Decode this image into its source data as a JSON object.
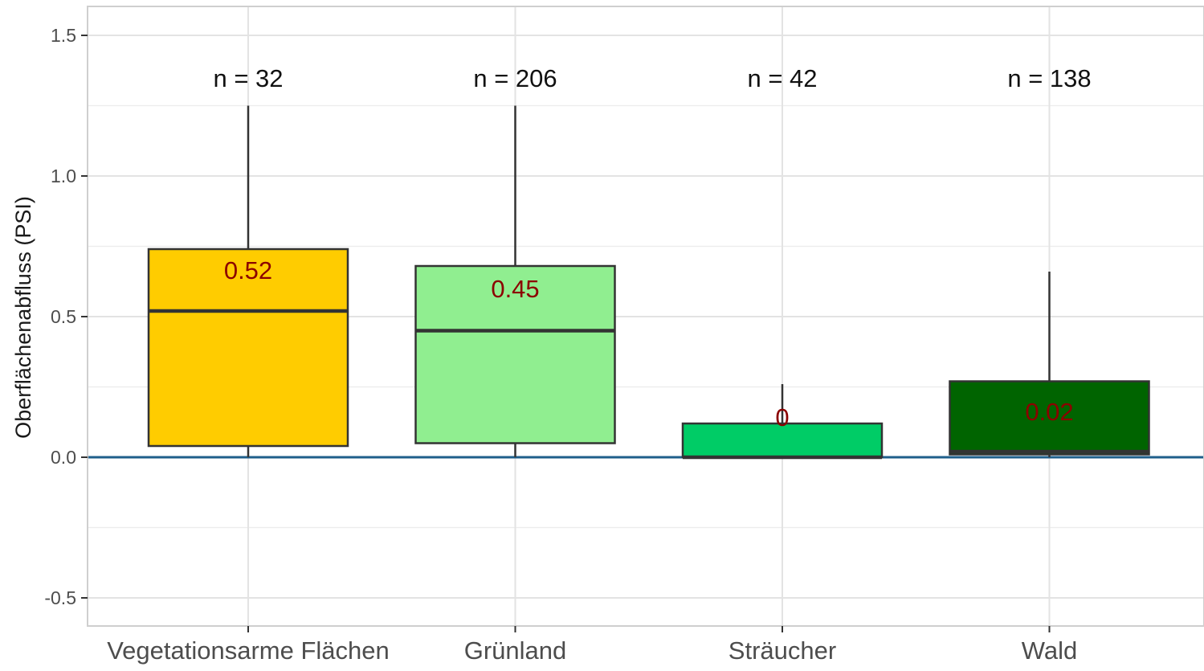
{
  "chart_data": {
    "type": "box",
    "ylabel": "Oberflächenabfluss (PSI)",
    "xlabel": "",
    "ylim": [
      -0.6,
      1.6
    ],
    "yticks": [
      -0.5,
      0.0,
      0.5,
      1.0,
      1.5
    ],
    "ytick_labels": [
      "-0.5",
      "0.0",
      "0.5",
      "1.0",
      "1.5"
    ],
    "grid": true,
    "reference_line": {
      "y": 0,
      "color": "#1f5f8b"
    },
    "categories": [
      "Vegetationsarme Flächen",
      "Grünland",
      "Sträucher",
      "Wald"
    ],
    "boxes": [
      {
        "category": "Vegetationsarme Flächen",
        "n_label": "n = 32",
        "whisker_low": 0.0,
        "q1": 0.04,
        "median": 0.52,
        "q3": 0.74,
        "whisker_high": 1.25,
        "median_label": "0.52",
        "color": "#FFCC00"
      },
      {
        "category": "Grünland",
        "n_label": "n = 206",
        "whisker_low": 0.0,
        "q1": 0.05,
        "median": 0.45,
        "q3": 0.68,
        "whisker_high": 1.25,
        "median_label": "0.45",
        "color": "#90EE90"
      },
      {
        "category": "Sträucher",
        "n_label": "n = 42",
        "whisker_low": 0.0,
        "q1": 0.0,
        "median": 0.0,
        "q3": 0.12,
        "whisker_high": 0.26,
        "median_label": "0",
        "color": "#00CC66"
      },
      {
        "category": "Wald",
        "n_label": "n = 138",
        "whisker_low": 0.0,
        "q1": 0.01,
        "median": 0.02,
        "q3": 0.27,
        "whisker_high": 0.66,
        "median_label": "0.02",
        "color": "#006400"
      }
    ],
    "colors": {
      "median_label": "#8B0000",
      "grid": "#e3e3e3",
      "axis_text": "#4d4d4d",
      "box_border": "#333333"
    }
  }
}
